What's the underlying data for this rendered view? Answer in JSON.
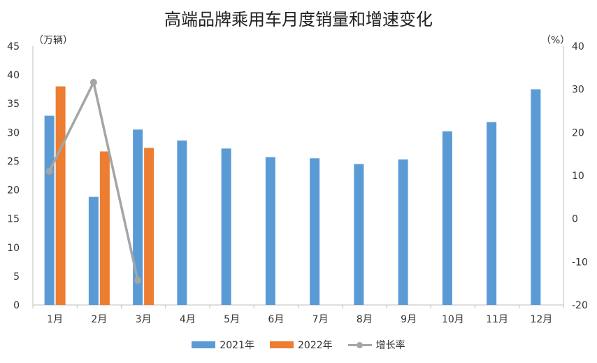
{
  "chart_data": {
    "type": "bar",
    "title": "高端品牌乘用车月度销量和增速变化",
    "y_left_unit": "（万辆）",
    "y_right_unit": "（%）",
    "categories": [
      "1月",
      "2月",
      "3月",
      "4月",
      "5月",
      "6月",
      "7月",
      "8月",
      "9月",
      "10月",
      "11月",
      "12月"
    ],
    "y_left_ticks": [
      "0",
      "5",
      "10",
      "15",
      "20",
      "25",
      "30",
      "35",
      "40",
      "45"
    ],
    "y_right_ticks": [
      "-20",
      "-10",
      "0",
      "10",
      "20",
      "30",
      "40"
    ],
    "ylim_left": [
      0,
      45
    ],
    "ylim_right": [
      -20,
      40
    ],
    "series": [
      {
        "name": "2021年",
        "type": "bar",
        "axis": "left",
        "color": "#5b9bd5",
        "values": [
          32.9,
          18.8,
          30.5,
          28.6,
          27.2,
          25.7,
          25.5,
          24.5,
          25.3,
          30.2,
          31.8,
          37.5
        ]
      },
      {
        "name": "2022年",
        "type": "bar",
        "axis": "left",
        "color": "#ed7d31",
        "values": [
          38.0,
          26.7,
          27.3,
          null,
          null,
          null,
          null,
          null,
          null,
          null,
          null,
          null
        ]
      },
      {
        "name": "增长率",
        "type": "line",
        "axis": "right",
        "color": "#a5a5a5",
        "values": [
          11.0,
          31.6,
          -14.3,
          null,
          null,
          null,
          null,
          null,
          null,
          null,
          null,
          null
        ]
      }
    ],
    "negative_tick_color": "#ff0000",
    "legend_position": "bottom",
    "grid": false
  }
}
